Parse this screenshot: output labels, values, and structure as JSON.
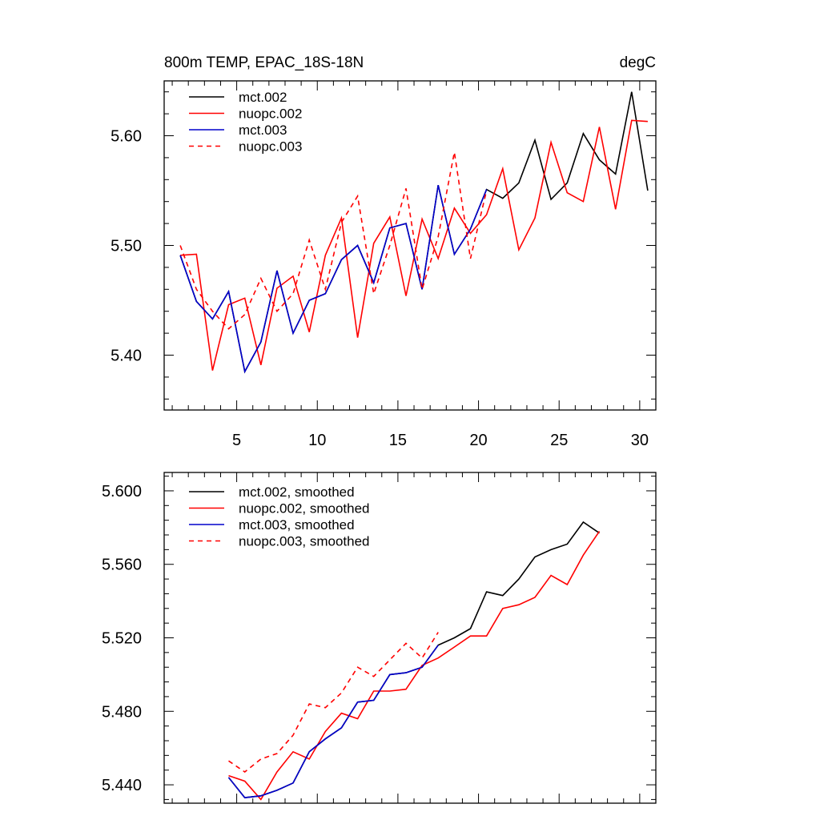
{
  "chart_data": [
    {
      "type": "line",
      "title_left": "800m TEMP, EPAC_18S-18N",
      "title_right": "degC",
      "xlim": [
        0.5,
        31
      ],
      "ylim": [
        5.35,
        5.65
      ],
      "xticks": [
        5,
        10,
        15,
        20,
        25,
        30
      ],
      "xtick_labels": [
        "5",
        "10",
        "15",
        "20",
        "25",
        "30"
      ],
      "yticks": [
        5.4,
        5.5,
        5.6
      ],
      "ytick_labels": [
        "5.40",
        "5.50",
        "5.60"
      ],
      "series": [
        {
          "name": "mct.002",
          "color": "#000000",
          "dash": "solid",
          "x": [
            1.5,
            2.5,
            3.5,
            4.5,
            5.5,
            6.5,
            7.5,
            8.5,
            9.5,
            10.5,
            11.5,
            12.5,
            13.5,
            14.5,
            15.5,
            16.5,
            17.5,
            18.5,
            19.5,
            20.5,
            21.5,
            22.5,
            23.5,
            24.5,
            25.5,
            26.5,
            27.5,
            28.5,
            29.5,
            30.5
          ],
          "values": [
            5.491,
            5.449,
            5.433,
            5.458,
            5.385,
            5.412,
            5.477,
            5.42,
            5.45,
            5.456,
            5.487,
            5.5,
            5.466,
            5.516,
            5.52,
            5.46,
            5.555,
            5.492,
            5.515,
            5.551,
            5.543,
            5.557,
            5.596,
            5.542,
            5.557,
            5.602,
            5.578,
            5.565,
            5.64,
            5.55
          ]
        },
        {
          "name": "nuopc.002",
          "color": "#ff0000",
          "dash": "solid",
          "x": [
            1.5,
            2.5,
            3.5,
            4.5,
            5.5,
            6.5,
            7.5,
            8.5,
            9.5,
            10.5,
            11.5,
            12.5,
            13.5,
            14.5,
            15.5,
            16.5,
            17.5,
            18.5,
            19.5,
            20.5,
            21.5,
            22.5,
            23.5,
            24.5,
            25.5,
            26.5,
            27.5,
            28.5,
            29.5,
            30.5
          ],
          "values": [
            5.491,
            5.492,
            5.386,
            5.446,
            5.452,
            5.391,
            5.461,
            5.472,
            5.421,
            5.491,
            5.525,
            5.416,
            5.502,
            5.526,
            5.454,
            5.524,
            5.488,
            5.534,
            5.511,
            5.528,
            5.57,
            5.496,
            5.525,
            5.594,
            5.548,
            5.54,
            5.608,
            5.533,
            5.614,
            5.613
          ]
        },
        {
          "name": "mct.003",
          "color": "#0000cc",
          "dash": "solid",
          "x": [
            1.5,
            2.5,
            3.5,
            4.5,
            5.5,
            6.5,
            7.5,
            8.5,
            9.5,
            10.5,
            11.5,
            12.5,
            13.5,
            14.5,
            15.5,
            16.5,
            17.5,
            18.5,
            19.5,
            20.5
          ],
          "values": [
            5.491,
            5.449,
            5.433,
            5.458,
            5.385,
            5.412,
            5.477,
            5.42,
            5.45,
            5.456,
            5.487,
            5.5,
            5.466,
            5.516,
            5.52,
            5.46,
            5.555,
            5.492,
            5.515,
            5.551
          ]
        },
        {
          "name": "nuopc.003",
          "color": "#ff0000",
          "dash": "dashed",
          "x": [
            1.5,
            2.5,
            3.5,
            4.5,
            5.5,
            6.5,
            7.5,
            8.5,
            9.5,
            10.5,
            11.5,
            12.5,
            13.5,
            14.5,
            15.5,
            16.5,
            17.5,
            18.5,
            19.5,
            20.5
          ],
          "values": [
            5.5,
            5.46,
            5.44,
            5.424,
            5.437,
            5.47,
            5.44,
            5.456,
            5.505,
            5.46,
            5.521,
            5.545,
            5.456,
            5.5,
            5.552,
            5.46,
            5.508,
            5.585,
            5.488,
            5.55
          ]
        }
      ]
    },
    {
      "type": "line",
      "xlim": [
        0.5,
        31
      ],
      "ylim": [
        5.43,
        5.61
      ],
      "xticks": [
        5,
        10,
        15,
        20,
        25,
        30
      ],
      "yticks": [
        5.44,
        5.48,
        5.52,
        5.56,
        5.6
      ],
      "ytick_labels": [
        "5.440",
        "5.480",
        "5.520",
        "5.560",
        "5.600"
      ],
      "series": [
        {
          "name": "mct.002, smoothed",
          "color": "#000000",
          "dash": "solid",
          "x": [
            4.5,
            5.5,
            6.5,
            7.5,
            8.5,
            9.5,
            10.5,
            11.5,
            12.5,
            13.5,
            14.5,
            15.5,
            16.5,
            17.5,
            18.5,
            19.5,
            20.5,
            21.5,
            22.5,
            23.5,
            24.5,
            25.5,
            26.5,
            27.5
          ],
          "values": [
            5.444,
            5.433,
            5.434,
            5.437,
            5.441,
            5.458,
            5.465,
            5.471,
            5.485,
            5.486,
            5.5,
            5.501,
            5.504,
            5.516,
            5.52,
            5.525,
            5.545,
            5.543,
            5.552,
            5.564,
            5.568,
            5.571,
            5.583,
            5.577
          ]
        },
        {
          "name": "nuopc.002, smoothed",
          "color": "#ff0000",
          "dash": "solid",
          "x": [
            4.5,
            5.5,
            6.5,
            7.5,
            8.5,
            9.5,
            10.5,
            11.5,
            12.5,
            13.5,
            14.5,
            15.5,
            16.5,
            17.5,
            18.5,
            19.5,
            20.5,
            21.5,
            22.5,
            23.5,
            24.5,
            25.5,
            26.5,
            27.5
          ],
          "values": [
            5.445,
            5.442,
            5.432,
            5.447,
            5.458,
            5.454,
            5.469,
            5.479,
            5.476,
            5.491,
            5.491,
            5.492,
            5.505,
            5.509,
            5.515,
            5.521,
            5.521,
            5.536,
            5.538,
            5.542,
            5.554,
            5.549,
            5.565,
            5.578
          ]
        },
        {
          "name": "mct.003, smoothed",
          "color": "#0000cc",
          "dash": "solid",
          "x": [
            4.5,
            5.5,
            6.5,
            7.5,
            8.5,
            9.5,
            10.5,
            11.5,
            12.5,
            13.5,
            14.5,
            15.5,
            16.5,
            17.5
          ],
          "values": [
            5.444,
            5.433,
            5.434,
            5.437,
            5.441,
            5.458,
            5.465,
            5.471,
            5.485,
            5.486,
            5.5,
            5.501,
            5.504,
            5.516
          ]
        },
        {
          "name": "nuopc.003, smoothed",
          "color": "#ff0000",
          "dash": "dashed",
          "x": [
            4.5,
            5.5,
            6.5,
            7.5,
            8.5,
            9.5,
            10.5,
            11.5,
            12.5,
            13.5,
            14.5,
            15.5,
            16.5,
            17.5
          ],
          "values": [
            5.453,
            5.447,
            5.454,
            5.457,
            5.467,
            5.484,
            5.482,
            5.49,
            5.504,
            5.499,
            5.508,
            5.517,
            5.509,
            5.523
          ]
        }
      ]
    }
  ]
}
